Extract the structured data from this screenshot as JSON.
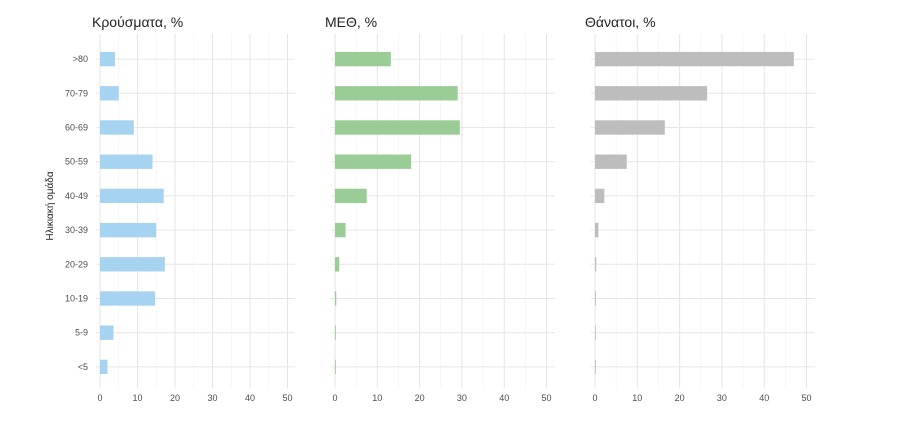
{
  "chart_data": {
    "type": "bar",
    "orientation": "horizontal",
    "ylabel": "Ηλικιακή ομάδα",
    "categories": [
      ">80",
      "70-79",
      "60-69",
      "50-59",
      "40-49",
      "30-39",
      "20-29",
      "10-19",
      "5-9",
      "<5"
    ],
    "panels": [
      {
        "title": "Κρούσματα, %",
        "color": "#a6d3ef",
        "xlim": [
          0,
          52
        ],
        "xticks": [
          0,
          10,
          20,
          30,
          40,
          50
        ],
        "values": [
          4,
          5,
          9,
          14,
          17,
          15,
          17.3,
          14.7,
          3.6,
          2
        ]
      },
      {
        "title": "ΜΕΘ, %",
        "color": "#9acd96",
        "xlim": [
          0,
          52
        ],
        "xticks": [
          0,
          10,
          20,
          30,
          40,
          50
        ],
        "values": [
          13.2,
          29,
          29.5,
          18,
          7.5,
          2.5,
          1,
          0.3,
          0.2,
          0.2
        ]
      },
      {
        "title": "Θάνατοι, %",
        "color": "#bdbdbd",
        "xlim": [
          0,
          52
        ],
        "xticks": [
          0,
          10,
          20,
          30,
          40,
          50
        ],
        "values": [
          47,
          26.5,
          16.5,
          7.5,
          2.2,
          0.8,
          0.3,
          0.2,
          0.1,
          0.2
        ]
      }
    ]
  }
}
